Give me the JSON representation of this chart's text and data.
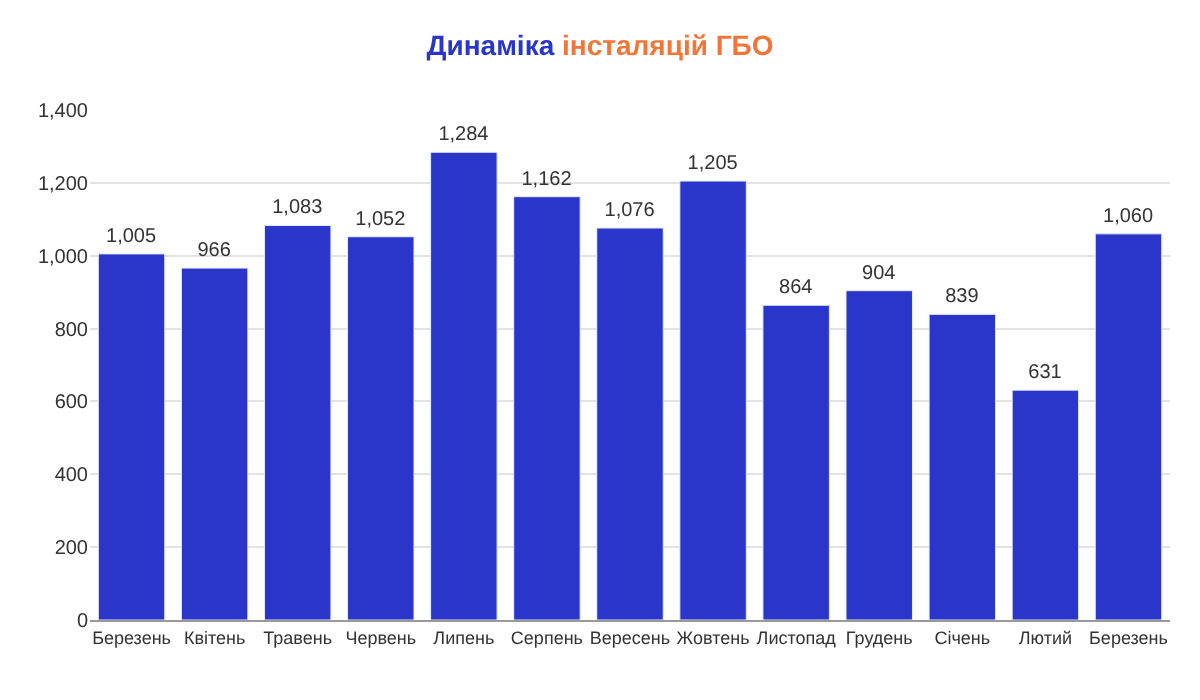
{
  "chart_data": {
    "type": "bar",
    "title": "Динаміка інсталяцій ГБО",
    "categories": [
      "Березень",
      "Квітень",
      "Травень",
      "Червень",
      "Липень",
      "Серпень",
      "Вересень",
      "Жовтень",
      "Листопад",
      "Грудень",
      "Січень",
      "Лютий",
      "Березень"
    ],
    "values": [
      1005,
      966,
      1083,
      1052,
      1284,
      1162,
      1076,
      1205,
      864,
      904,
      839,
      631,
      1060
    ],
    "color": "#2a36c9",
    "ylim": [
      0,
      1400
    ],
    "yticks": [
      0,
      200,
      400,
      600,
      800,
      {
        "value": 1000,
        "label": "1,000"
      },
      {
        "value": 1200,
        "label": "1,200"
      },
      {
        "value": 1400,
        "label": "1,400"
      }
    ],
    "value_labels": [
      "1,005",
      "966",
      "1,083",
      "1,052",
      "1,284",
      "1,162",
      "1,076",
      "1,205",
      "864",
      "904",
      "839",
      "631",
      "1,060"
    ],
    "grid": "y"
  }
}
